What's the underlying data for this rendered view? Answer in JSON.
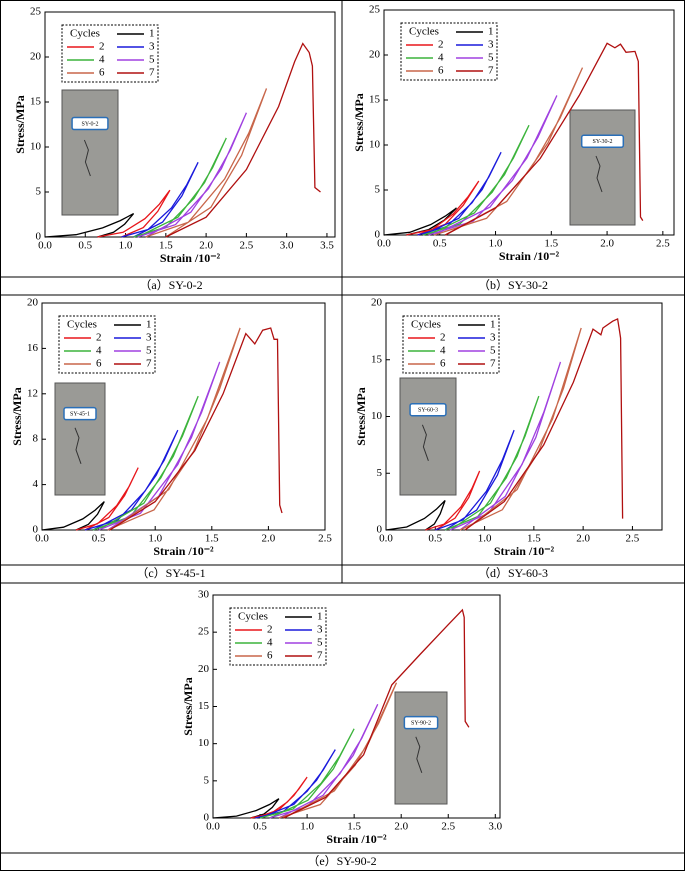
{
  "chart_data": [
    {
      "type": "line",
      "caption": "（a）SY-0-2",
      "xlabel": "Strain /10⁻²",
      "ylabel": "Stress/MPa",
      "legend_title": "Cycles",
      "photo_label": "SY-0-2",
      "xlim": [
        0,
        3.6
      ],
      "ylim": [
        0,
        25
      ],
      "xticks": [
        {
          "value": 0,
          "label": "0.0"
        },
        {
          "value": 0.5,
          "label": "0.5"
        },
        {
          "value": 1,
          "label": "1.0"
        },
        {
          "value": 1.5,
          "label": "1.5"
        },
        {
          "value": 2,
          "label": "2.0"
        },
        {
          "value": 2.5,
          "label": "2.5"
        },
        {
          "value": 3,
          "label": "3.0"
        },
        {
          "value": 3.5,
          "label": "3.5"
        }
      ],
      "yticks": [
        0,
        5,
        10,
        15,
        20,
        25
      ],
      "series": [
        {
          "name": "1",
          "color": "#000000",
          "x": [
            0,
            0.385,
            0.715,
            0.935,
            1.1,
            0.99,
            0.85,
            0.65
          ],
          "values": [
            0,
            0.26,
            1.01,
            1.82,
            2.6,
            1.43,
            0.52,
            0
          ]
        },
        {
          "name": "2",
          "color": "#e8161b",
          "x": [
            0.65,
            0.97,
            1.24,
            1.42,
            1.55,
            1.4,
            1.22,
            0.95
          ],
          "values": [
            0,
            0.52,
            2.03,
            3.64,
            5.2,
            2.86,
            1.04,
            0
          ]
        },
        {
          "name": "3",
          "color": "#1a1adc",
          "x": [
            0.95,
            1.28,
            1.57,
            1.76,
            1.9,
            1.7,
            1.46,
            1.1
          ],
          "values": [
            0,
            0.83,
            3.24,
            5.81,
            8.3,
            4.57,
            1.66,
            0
          ]
        },
        {
          "name": "4",
          "color": "#3cb43c",
          "x": [
            1.1,
            1.5,
            1.85,
            2.08,
            2.25,
            1.98,
            1.65,
            1.15
          ],
          "values": [
            0,
            1.1,
            4.29,
            7.7,
            11,
            6.05,
            2.2,
            0
          ]
        },
        {
          "name": "5",
          "color": "#a040e0",
          "x": [
            1.15,
            1.62,
            2.03,
            2.3,
            2.5,
            2.19,
            1.81,
            1.25
          ],
          "values": [
            0,
            1.38,
            5.38,
            9.66,
            13.8,
            7.59,
            2.76,
            0
          ]
        },
        {
          "name": "6",
          "color": "#c8664a",
          "x": [
            1.25,
            1.78,
            2.23,
            2.53,
            2.75,
            2.44,
            2.06,
            1.5
          ],
          "values": [
            0,
            1.65,
            6.44,
            11.55,
            16.5,
            9.08,
            3.3,
            0
          ]
        },
        {
          "name": "7",
          "color": "#b01010",
          "x": [
            1.5,
            2.0,
            2.5,
            2.9,
            3.1,
            3.2,
            3.28,
            3.32,
            3.35,
            3.42
          ],
          "values": [
            0,
            2.2,
            7.5,
            14.5,
            19.5,
            21.5,
            20.5,
            19,
            5.5,
            5
          ]
        }
      ]
    },
    {
      "type": "line",
      "caption": "（b）SY-30-2",
      "xlabel": "Strain /10⁻²",
      "ylabel": "Stress/MPa",
      "legend_title": "Cycles",
      "photo_label": "SY-30-2",
      "xlim": [
        0,
        2.6
      ],
      "ylim": [
        0,
        25
      ],
      "xticks": [
        {
          "value": 0,
          "label": "0.0"
        },
        {
          "value": 0.5,
          "label": "0.5"
        },
        {
          "value": 1,
          "label": "1.0"
        },
        {
          "value": 1.5,
          "label": "1.5"
        },
        {
          "value": 2,
          "label": "2.0"
        },
        {
          "value": 2.5,
          "label": "2.5"
        }
      ],
      "yticks": [
        0,
        5,
        10,
        15,
        20,
        25
      ],
      "series": [
        {
          "name": "1",
          "color": "#000000",
          "x": [
            0,
            0.23,
            0.42,
            0.55,
            0.65,
            0.54,
            0.4,
            0.2
          ],
          "values": [
            0,
            0.3,
            1.17,
            2.1,
            3,
            1.65,
            0.6,
            0
          ]
        },
        {
          "name": "2",
          "color": "#e8161b",
          "x": [
            0.2,
            0.43,
            0.62,
            0.75,
            0.85,
            0.71,
            0.55,
            0.3
          ],
          "values": [
            0,
            0.6,
            2.34,
            4.2,
            6,
            3.3,
            1.2,
            0
          ]
        },
        {
          "name": "3",
          "color": "#1a1adc",
          "x": [
            0.3,
            0.56,
            0.79,
            0.94,
            1.05,
            0.88,
            0.67,
            0.35
          ],
          "values": [
            0,
            0.92,
            3.59,
            6.44,
            9.2,
            5.06,
            1.84,
            0
          ]
        },
        {
          "name": "4",
          "color": "#3cb43c",
          "x": [
            0.35,
            0.68,
            0.97,
            1.16,
            1.3,
            1.08,
            0.81,
            0.4
          ],
          "values": [
            0,
            1.22,
            4.76,
            8.54,
            12.2,
            6.71,
            2.44,
            0
          ]
        },
        {
          "name": "5",
          "color": "#a040e0",
          "x": [
            0.4,
            0.8,
            1.15,
            1.38,
            1.55,
            1.28,
            0.95,
            0.45
          ],
          "values": [
            0,
            1.55,
            6.05,
            10.85,
            15.5,
            8.53,
            3.1,
            0
          ]
        },
        {
          "name": "6",
          "color": "#c8664a",
          "x": [
            0.45,
            0.92,
            1.31,
            1.58,
            1.78,
            1.47,
            1.1,
            0.55
          ],
          "values": [
            0,
            1.86,
            7.25,
            13.02,
            18.6,
            10.23,
            3.72,
            0
          ]
        },
        {
          "name": "7",
          "color": "#b01010",
          "x": [
            0.55,
            1.0,
            1.4,
            1.75,
            2.0,
            2.07,
            2.12,
            2.17,
            2.25,
            2.28,
            2.3,
            2.32
          ],
          "values": [
            0,
            3.0,
            8.5,
            15.5,
            21.3,
            20.8,
            21.2,
            20.3,
            20.4,
            19.3,
            2,
            1.6
          ]
        }
      ]
    },
    {
      "type": "line",
      "caption": "（c）SY-45-1",
      "xlabel": "Strain /10⁻²",
      "ylabel": "Stress/MPa",
      "legend_title": "Cycles",
      "photo_label": "SY-45-1",
      "xlim": [
        0,
        2.5
      ],
      "ylim": [
        0,
        20
      ],
      "xticks": [
        {
          "value": 0,
          "label": "0.0"
        },
        {
          "value": 0.5,
          "label": "0.5"
        },
        {
          "value": 1,
          "label": "1.0"
        },
        {
          "value": 1.5,
          "label": "1.5"
        },
        {
          "value": 2,
          "label": "2.0"
        },
        {
          "value": 2.5,
          "label": "2.5"
        }
      ],
      "yticks": [
        0,
        4,
        8,
        12,
        16,
        20
      ],
      "series": [
        {
          "name": "1",
          "color": "#000000",
          "x": [
            0,
            0.19,
            0.36,
            0.47,
            0.55,
            0.49,
            0.41,
            0.3
          ],
          "values": [
            0,
            0.25,
            0.98,
            1.75,
            2.5,
            1.38,
            0.5,
            0
          ]
        },
        {
          "name": "2",
          "color": "#e8161b",
          "x": [
            0.3,
            0.49,
            0.66,
            0.77,
            0.85,
            0.73,
            0.59,
            0.38
          ],
          "values": [
            0,
            0.55,
            2.15,
            3.85,
            5.5,
            3.03,
            1.1,
            0
          ]
        },
        {
          "name": "3",
          "color": "#1a1adc",
          "x": [
            0.38,
            0.67,
            0.91,
            1.08,
            1.2,
            1.01,
            0.79,
            0.45
          ],
          "values": [
            0,
            0.88,
            3.43,
            6.16,
            8.8,
            4.84,
            1.76,
            0
          ]
        },
        {
          "name": "4",
          "color": "#3cb43c",
          "x": [
            0.45,
            0.78,
            1.05,
            1.24,
            1.38,
            1.16,
            0.9,
            0.5
          ],
          "values": [
            0,
            1.18,
            4.6,
            8.26,
            11.8,
            6.49,
            2.36,
            0
          ]
        },
        {
          "name": "5",
          "color": "#a040e0",
          "x": [
            0.5,
            0.87,
            1.2,
            1.41,
            1.57,
            1.32,
            1.03,
            0.58
          ],
          "values": [
            0,
            1.48,
            5.77,
            10.36,
            14.8,
            8.14,
            2.96,
            0
          ]
        },
        {
          "name": "6",
          "color": "#c8664a",
          "x": [
            0.58,
            0.99,
            1.34,
            1.57,
            1.75,
            1.46,
            1.12,
            0.6
          ],
          "values": [
            0,
            1.78,
            6.94,
            12.46,
            17.8,
            9.79,
            3.56,
            0
          ]
        },
        {
          "name": "7",
          "color": "#b01010",
          "x": [
            0.6,
            1.0,
            1.35,
            1.6,
            1.8,
            1.88,
            1.95,
            2.02,
            2.05,
            2.08,
            2.1,
            2.12
          ],
          "values": [
            0,
            2.5,
            7.0,
            12.0,
            17.3,
            16.4,
            17.6,
            17.8,
            16.8,
            16.8,
            2.2,
            1.5
          ]
        }
      ]
    },
    {
      "type": "line",
      "caption": "（d）SY-60-3",
      "xlabel": "Strain /10⁻²",
      "ylabel": "Stress/MPa",
      "legend_title": "Cycles",
      "photo_label": "SY-60-3",
      "xlim": [
        0,
        2.8
      ],
      "ylim": [
        0,
        20
      ],
      "xticks": [
        {
          "value": 0,
          "label": "0.0"
        },
        {
          "value": 0.5,
          "label": "0.5"
        },
        {
          "value": 1,
          "label": "1.0"
        },
        {
          "value": 1.5,
          "label": "1.5"
        },
        {
          "value": 2,
          "label": "2.0"
        },
        {
          "value": 2.5,
          "label": "2.5"
        }
      ],
      "yticks": [
        0,
        5,
        10,
        15,
        20
      ],
      "series": [
        {
          "name": "1",
          "color": "#000000",
          "x": [
            0,
            0.21,
            0.39,
            0.51,
            0.6,
            0.55,
            0.49,
            0.4
          ],
          "values": [
            0,
            0.26,
            1.01,
            1.82,
            2.6,
            1.43,
            0.52,
            0
          ]
        },
        {
          "name": "2",
          "color": "#e8161b",
          "x": [
            0.4,
            0.59,
            0.76,
            0.87,
            0.95,
            0.84,
            0.7,
            0.5
          ],
          "values": [
            0,
            0.52,
            2.03,
            3.64,
            5.2,
            2.86,
            1.04,
            0
          ]
        },
        {
          "name": "3",
          "color": "#1a1adc",
          "x": [
            0.5,
            0.78,
            1.02,
            1.18,
            1.3,
            1.13,
            0.92,
            0.6
          ],
          "values": [
            0,
            0.88,
            3.43,
            6.16,
            8.8,
            4.84,
            1.76,
            0
          ]
        },
        {
          "name": "4",
          "color": "#3cb43c",
          "x": [
            0.6,
            0.93,
            1.22,
            1.41,
            1.55,
            1.33,
            1.06,
            0.65
          ],
          "values": [
            0,
            1.18,
            4.6,
            8.26,
            11.8,
            6.49,
            2.36,
            0
          ]
        },
        {
          "name": "5",
          "color": "#a040e0",
          "x": [
            0.65,
            1.04,
            1.38,
            1.6,
            1.77,
            1.52,
            1.21,
            0.75
          ],
          "values": [
            0,
            1.48,
            5.77,
            10.36,
            14.8,
            8.14,
            2.96,
            0
          ]
        },
        {
          "name": "6",
          "color": "#c8664a",
          "x": [
            0.75,
            1.18,
            1.55,
            1.8,
            1.98,
            1.69,
            1.33,
            0.8
          ],
          "values": [
            0,
            1.78,
            6.94,
            12.46,
            17.8,
            9.79,
            3.56,
            0
          ]
        },
        {
          "name": "7",
          "color": "#b01010",
          "x": [
            0.8,
            1.2,
            1.6,
            1.9,
            2.1,
            2.18,
            2.2,
            2.3,
            2.35,
            2.37,
            2.38,
            2.4
          ],
          "values": [
            0,
            2.5,
            7.5,
            13,
            17.7,
            17.2,
            17.8,
            18.4,
            18.6,
            17.5,
            16.9,
            1
          ]
        }
      ]
    },
    {
      "type": "line",
      "caption": "（e）SY-90-2",
      "xlabel": "Strain /10⁻²",
      "ylabel": "Stress/MPa",
      "legend_title": "Cycles",
      "photo_label": "SY-90-2",
      "xlim": [
        0,
        3.05
      ],
      "ylim": [
        0,
        30
      ],
      "xticks": [
        {
          "value": 0,
          "label": "0.0"
        },
        {
          "value": 0.5,
          "label": "0.5"
        },
        {
          "value": 1,
          "label": "1.0"
        },
        {
          "value": 1.5,
          "label": "1.5"
        },
        {
          "value": 2,
          "label": "2.0"
        },
        {
          "value": 2.5,
          "label": "2.5"
        },
        {
          "value": 3,
          "label": "3.0"
        }
      ],
      "yticks": [
        0,
        5,
        10,
        15,
        20,
        25,
        30
      ],
      "series": [
        {
          "name": "1",
          "color": "#000000",
          "x": [
            0,
            0.25,
            0.46,
            0.6,
            0.7,
            0.63,
            0.54,
            0.4
          ],
          "values": [
            0,
            0.26,
            1.01,
            1.82,
            2.6,
            1.43,
            0.52,
            0
          ]
        },
        {
          "name": "2",
          "color": "#e8161b",
          "x": [
            0.4,
            0.61,
            0.79,
            0.91,
            1.0,
            0.86,
            0.7,
            0.45
          ],
          "values": [
            0,
            0.55,
            2.15,
            3.85,
            5.5,
            3.03,
            1.1,
            0
          ]
        },
        {
          "name": "3",
          "color": "#1a1adc",
          "x": [
            0.45,
            0.75,
            1.0,
            1.17,
            1.3,
            1.1,
            0.86,
            0.5
          ],
          "values": [
            0,
            0.92,
            3.59,
            6.44,
            9.2,
            5.06,
            1.84,
            0
          ]
        },
        {
          "name": "4",
          "color": "#3cb43c",
          "x": [
            0.5,
            0.85,
            1.15,
            1.35,
            1.5,
            1.28,
            1.01,
            0.6
          ],
          "values": [
            0,
            1.2,
            4.68,
            8.4,
            12,
            6.6,
            2.4,
            0
          ]
        },
        {
          "name": "5",
          "color": "#a040e0",
          "x": [
            0.6,
            1.0,
            1.35,
            1.58,
            1.75,
            1.49,
            1.17,
            0.7
          ],
          "values": [
            0,
            1.53,
            5.97,
            10.71,
            15.3,
            8.42,
            3.06,
            0
          ]
        },
        {
          "name": "6",
          "color": "#c8664a",
          "x": [
            0.7,
            1.14,
            1.51,
            1.76,
            1.95,
            1.65,
            1.29,
            0.75
          ],
          "values": [
            0,
            1.82,
            7.1,
            12.74,
            18.2,
            10.01,
            3.64,
            0
          ]
        },
        {
          "name": "7",
          "color": "#b01010",
          "x": [
            0.75,
            1.2,
            1.6,
            1.9,
            2.2,
            2.5,
            2.65,
            2.67,
            2.68,
            2.72
          ],
          "values": [
            0,
            2.8,
            8.5,
            17.9,
            22,
            26,
            28,
            27,
            13,
            12.2
          ]
        }
      ]
    }
  ]
}
